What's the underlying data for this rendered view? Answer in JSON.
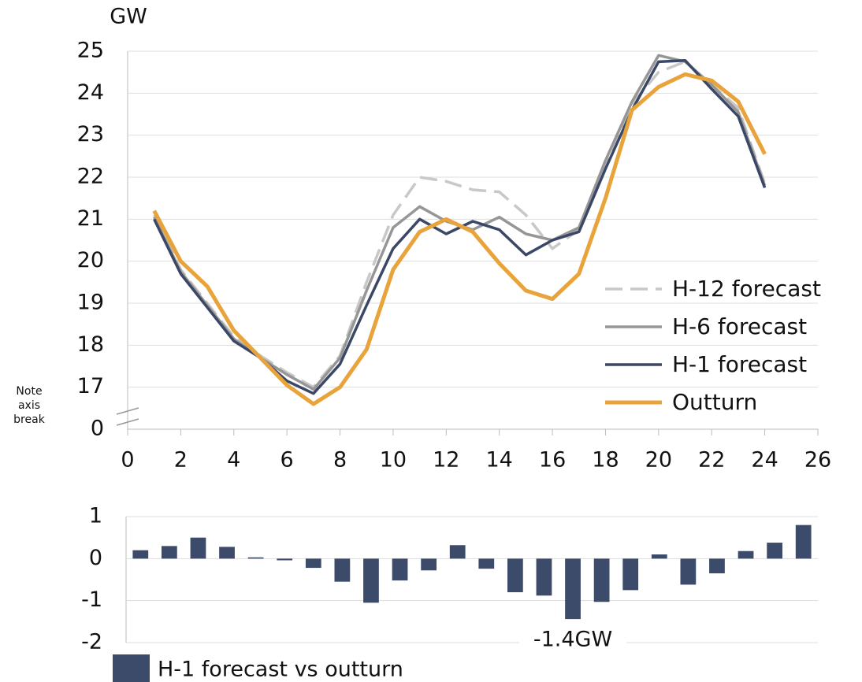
{
  "chart_data": [
    {
      "type": "line",
      "y_label": "GW",
      "annotation": "Note axis break",
      "x": [
        1,
        2,
        3,
        4,
        5,
        6,
        7,
        8,
        9,
        10,
        11,
        12,
        13,
        14,
        15,
        16,
        17,
        18,
        19,
        20,
        21,
        22,
        23,
        24
      ],
      "xlim": [
        0,
        26
      ],
      "xticks": [
        0,
        2,
        4,
        6,
        8,
        10,
        12,
        14,
        16,
        18,
        20,
        22,
        24,
        26
      ],
      "ylim": [
        0,
        25
      ],
      "yticks": [
        0,
        17,
        18,
        19,
        20,
        21,
        22,
        23,
        24,
        25
      ],
      "y_break": [
        0,
        16
      ],
      "grid": true,
      "legend": "right",
      "series": [
        {
          "name": "H-12 forecast",
          "color": "#c8c8c8",
          "dashed": true,
          "values": [
            21.1,
            19.8,
            19.0,
            18.2,
            17.75,
            17.35,
            17.0,
            17.75,
            19.5,
            21.1,
            22.0,
            21.9,
            21.7,
            21.65,
            21.1,
            20.3,
            20.75,
            22.3,
            23.75,
            24.5,
            24.75,
            24.2,
            23.65,
            21.85
          ]
        },
        {
          "name": "H-6 forecast",
          "color": "#969696",
          "values": [
            21.05,
            19.75,
            18.95,
            18.15,
            17.7,
            17.3,
            16.95,
            17.7,
            19.3,
            20.8,
            21.3,
            20.95,
            20.75,
            21.05,
            20.65,
            20.5,
            20.8,
            22.4,
            23.8,
            24.9,
            24.75,
            24.2,
            23.55,
            21.8
          ]
        },
        {
          "name": "H-1 forecast",
          "color": "#3b4766",
          "values": [
            21.0,
            19.7,
            18.9,
            18.1,
            17.7,
            17.15,
            16.85,
            17.55,
            18.95,
            20.3,
            21.0,
            20.65,
            20.95,
            20.75,
            20.15,
            20.5,
            20.7,
            22.2,
            23.6,
            24.75,
            24.78,
            24.1,
            23.45,
            21.75
          ]
        },
        {
          "name": "Outturn",
          "color": "#e8a33a",
          "values": [
            21.2,
            20.0,
            19.4,
            18.35,
            17.7,
            17.05,
            16.6,
            17.0,
            17.9,
            19.8,
            20.7,
            21.0,
            20.7,
            19.95,
            19.3,
            19.1,
            19.7,
            21.5,
            23.6,
            24.15,
            24.45,
            24.3,
            23.8,
            22.55
          ]
        }
      ]
    },
    {
      "type": "bar",
      "categories": [
        null,
        null,
        null,
        null,
        null,
        null,
        null,
        null,
        null,
        null,
        null,
        null,
        null,
        null,
        null,
        null,
        null,
        null,
        null,
        null,
        null,
        null,
        null,
        null
      ],
      "ylim": [
        -2,
        1
      ],
      "yticks": [
        -2,
        -1,
        0,
        1
      ],
      "grid": true,
      "legend": "bottom-left",
      "series": [
        {
          "name": "H-1 forecast vs outturn",
          "color": "#3d4b6b",
          "values": [
            0.2,
            0.3,
            0.5,
            0.28,
            0.03,
            -0.04,
            -0.22,
            -0.55,
            -1.05,
            -0.52,
            -0.28,
            0.32,
            -0.24,
            -0.8,
            -0.88,
            -1.44,
            -1.03,
            -0.75,
            0.1,
            -0.62,
            -0.35,
            0.18,
            0.38,
            0.8
          ],
          "value_labels": [
            null,
            null,
            null,
            null,
            null,
            null,
            null,
            null,
            null,
            null,
            null,
            null,
            null,
            null,
            null,
            "-1.4GW",
            null,
            null,
            null,
            null,
            null,
            null,
            null,
            null
          ]
        }
      ]
    }
  ]
}
